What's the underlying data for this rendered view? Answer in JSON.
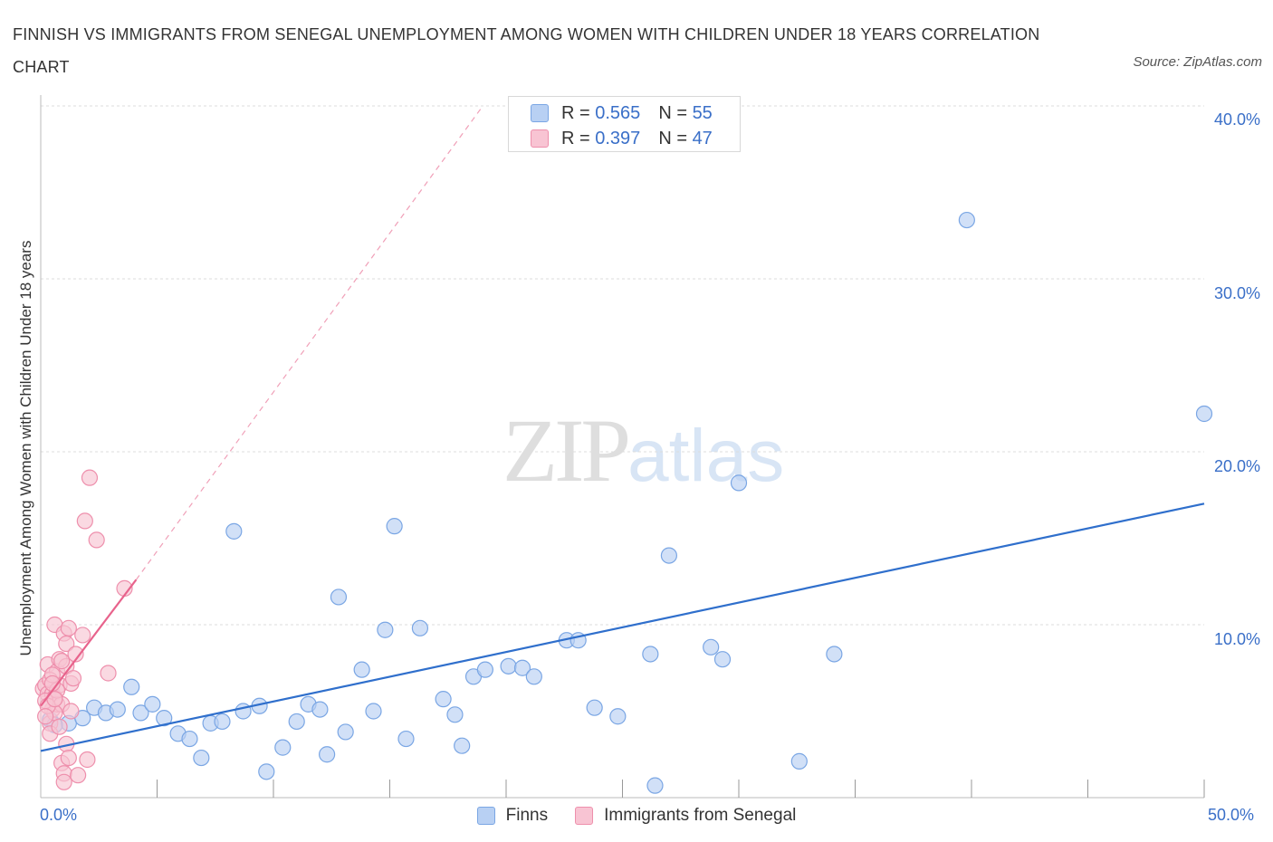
{
  "title": "FINNISH VS IMMIGRANTS FROM SENEGAL UNEMPLOYMENT AMONG WOMEN WITH CHILDREN UNDER 18 YEARS CORRELATION CHART",
  "source": "Source: ZipAtlas.com",
  "watermark": {
    "zip": "ZIP",
    "atlas": "atlas"
  },
  "colors": {
    "finns_fill": "#b8d0f3",
    "finns_stroke": "#7aa6e4",
    "finns_line": "#2f6fcc",
    "senegal_fill": "#f8c4d3",
    "senegal_stroke": "#ee8fac",
    "senegal_line": "#e8638c",
    "grid": "#dddddd",
    "tick_text": "#3a6fc8"
  },
  "legend": {
    "finns": {
      "r_label": "R = ",
      "r_value": "0.565",
      "n_label": "N = ",
      "n_value": "55"
    },
    "senegal": {
      "r_label": "R = ",
      "r_value": "0.397",
      "n_label": "N = ",
      "n_value": "47"
    }
  },
  "bottom_legend": {
    "finns": "Finns",
    "senegal": "Immigrants from Senegal"
  },
  "chart_data": {
    "type": "scatter",
    "title": "FINNISH VS IMMIGRANTS FROM SENEGAL UNEMPLOYMENT AMONG WOMEN WITH CHILDREN UNDER 18 YEARS CORRELATION CHART",
    "xlabel": "",
    "ylabel": "Unemployment Among Women with Children Under 18 years",
    "xlim": [
      0,
      50
    ],
    "ylim": [
      0,
      40
    ],
    "x_ticks": [
      {
        "value": 0,
        "label": "0.0%"
      },
      {
        "value": 50,
        "label": "50.0%"
      }
    ],
    "y_ticks": [
      {
        "value": 10,
        "label": "10.0%"
      },
      {
        "value": 20,
        "label": "20.0%"
      },
      {
        "value": 30,
        "label": "30.0%"
      },
      {
        "value": 40,
        "label": "40.0%"
      }
    ],
    "grid": true,
    "legend_position": "top-center",
    "series": [
      {
        "name": "Finns",
        "r": 0.565,
        "n": 55,
        "trend": {
          "x": [
            0,
            50
          ],
          "y": [
            2.7,
            17.0
          ],
          "style": "solid"
        },
        "points": [
          [
            0.4,
            4.5
          ],
          [
            1.2,
            4.3
          ],
          [
            1.8,
            4.6
          ],
          [
            2.3,
            5.2
          ],
          [
            2.8,
            4.9
          ],
          [
            3.3,
            5.1
          ],
          [
            3.9,
            6.4
          ],
          [
            4.3,
            4.9
          ],
          [
            4.8,
            5.4
          ],
          [
            5.3,
            4.6
          ],
          [
            5.9,
            3.7
          ],
          [
            6.4,
            3.4
          ],
          [
            6.9,
            2.3
          ],
          [
            7.3,
            4.3
          ],
          [
            7.8,
            4.4
          ],
          [
            8.3,
            15.4
          ],
          [
            8.7,
            5.0
          ],
          [
            9.4,
            5.3
          ],
          [
            9.7,
            1.5
          ],
          [
            10.4,
            2.9
          ],
          [
            11.0,
            4.4
          ],
          [
            11.5,
            5.4
          ],
          [
            12.0,
            5.1
          ],
          [
            12.3,
            2.5
          ],
          [
            12.8,
            11.6
          ],
          [
            13.1,
            3.8
          ],
          [
            13.8,
            7.4
          ],
          [
            14.3,
            5.0
          ],
          [
            14.8,
            9.7
          ],
          [
            15.2,
            15.7
          ],
          [
            15.7,
            3.4
          ],
          [
            16.3,
            9.8
          ],
          [
            17.3,
            5.7
          ],
          [
            17.8,
            4.8
          ],
          [
            18.1,
            3.0
          ],
          [
            18.6,
            7.0
          ],
          [
            19.1,
            7.4
          ],
          [
            20.1,
            7.6
          ],
          [
            20.7,
            7.5
          ],
          [
            21.2,
            7.0
          ],
          [
            22.6,
            9.1
          ],
          [
            23.1,
            9.1
          ],
          [
            23.8,
            5.2
          ],
          [
            24.8,
            4.7
          ],
          [
            26.2,
            8.3
          ],
          [
            26.4,
            0.7
          ],
          [
            27.0,
            14.0
          ],
          [
            28.8,
            8.7
          ],
          [
            29.3,
            8.0
          ],
          [
            30.0,
            18.2
          ],
          [
            32.6,
            2.1
          ],
          [
            34.1,
            8.3
          ],
          [
            39.8,
            33.4
          ],
          [
            50.0,
            22.2
          ],
          [
            0.6,
            4.2
          ]
        ]
      },
      {
        "name": "Immigrants from Senegal",
        "r": 0.397,
        "n": 47,
        "trend": {
          "x": [
            0,
            4.1
          ],
          "y": [
            5.3,
            12.6
          ],
          "style": "solid"
        },
        "trend_extension": {
          "x": [
            4.1,
            19.0
          ],
          "y": [
            12.6,
            40.0
          ],
          "style": "dashed"
        },
        "points": [
          [
            0.1,
            6.3
          ],
          [
            0.2,
            6.5
          ],
          [
            0.3,
            6.0
          ],
          [
            0.3,
            7.7
          ],
          [
            0.4,
            4.3
          ],
          [
            0.4,
            3.7
          ],
          [
            0.5,
            6.0
          ],
          [
            0.5,
            5.1
          ],
          [
            0.6,
            5.8
          ],
          [
            0.6,
            10.0
          ],
          [
            0.7,
            5.4
          ],
          [
            0.7,
            7.3
          ],
          [
            0.8,
            8.0
          ],
          [
            0.8,
            6.5
          ],
          [
            0.9,
            2.0
          ],
          [
            0.9,
            5.4
          ],
          [
            1.0,
            9.5
          ],
          [
            1.0,
            1.4
          ],
          [
            1.0,
            0.9
          ],
          [
            1.1,
            7.6
          ],
          [
            1.1,
            3.1
          ],
          [
            1.1,
            8.9
          ],
          [
            1.2,
            9.8
          ],
          [
            1.2,
            2.3
          ],
          [
            1.3,
            6.6
          ],
          [
            1.3,
            5.0
          ],
          [
            1.5,
            8.3
          ],
          [
            1.6,
            1.3
          ],
          [
            1.8,
            9.4
          ],
          [
            2.0,
            2.2
          ],
          [
            2.1,
            18.5
          ],
          [
            2.4,
            14.9
          ],
          [
            1.9,
            16.0
          ],
          [
            2.9,
            7.2
          ],
          [
            3.6,
            12.1
          ],
          [
            0.2,
            5.6
          ],
          [
            0.4,
            6.8
          ],
          [
            0.5,
            7.1
          ],
          [
            0.6,
            4.9
          ],
          [
            0.7,
            6.2
          ],
          [
            0.8,
            4.1
          ],
          [
            0.3,
            5.3
          ],
          [
            0.2,
            4.7
          ],
          [
            0.9,
            7.9
          ],
          [
            0.5,
            6.6
          ],
          [
            1.4,
            6.9
          ],
          [
            0.6,
            5.7
          ]
        ]
      }
    ]
  }
}
